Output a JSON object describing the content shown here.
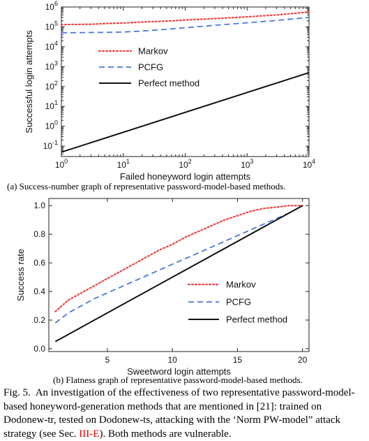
{
  "subcaptions": {
    "a": "(a) Success-number graph of representative password-model-based methods.",
    "b": "(b) Flatness graph of representative password-model-based methods."
  },
  "caption": {
    "label": "Fig. 5.",
    "text_before": "An investigation of the effectiveness of two representative password-model-based honeyword-generation methods that are mentioned in [21]: trained on Dodonew-tr, tested on Dodonew-ts, attacking with the ‘Norm PW-model” attack strategy (see Sec. ",
    "ref": "III-E",
    "text_after": "). Both methods are vulnerable."
  },
  "colors": {
    "markov": "#ee4444",
    "pcfg": "#4a78e0",
    "perfect": "#111111"
  },
  "chart_data": [
    {
      "type": "line",
      "xlabel": "Failed honeyword login attempts",
      "ylabel": "Successful login attempts",
      "xscale": "log",
      "yscale": "log",
      "xlim": [
        1,
        10000
      ],
      "ylim": [
        0.03,
        1000000
      ],
      "xticks": [
        1,
        10,
        100,
        1000,
        10000
      ],
      "xtick_labels": [
        "10^0",
        "10^1",
        "10^2",
        "10^3",
        "10^4"
      ],
      "yticks": [
        0.1,
        1,
        10,
        100,
        1000,
        10000,
        100000,
        1000000
      ],
      "ytick_labels": [
        "10^-1",
        "10^0",
        "10^1",
        "10^2",
        "10^3",
        "10^4",
        "10^5",
        "10^6"
      ],
      "legend_position": "center-left",
      "series": [
        {
          "name": "Markov",
          "style": "dotted",
          "x": [
            1,
            3,
            6,
            10,
            20,
            50,
            100,
            300,
            1000,
            3000,
            10000
          ],
          "y": [
            130000,
            135000,
            150000,
            155000,
            175000,
            195000,
            220000,
            260000,
            320000,
            400000,
            560000
          ]
        },
        {
          "name": "PCFG",
          "style": "dashed",
          "x": [
            1,
            3,
            6,
            10,
            20,
            50,
            100,
            300,
            1000,
            3000,
            10000
          ],
          "y": [
            50000,
            52000,
            53000,
            55000,
            62000,
            75000,
            90000,
            120000,
            160000,
            210000,
            300000
          ]
        },
        {
          "name": "Perfect method",
          "style": "solid",
          "x": [
            1,
            10000
          ],
          "y": [
            0.05,
            500
          ]
        }
      ]
    },
    {
      "type": "line",
      "xlabel": "Sweetword login attempts",
      "ylabel": "Success rate",
      "xlim": [
        0.5,
        20.5
      ],
      "ylim": [
        -0.02,
        1.05
      ],
      "xticks": [
        5,
        10,
        15,
        20
      ],
      "xtick_labels": [
        "5",
        "10",
        "15",
        "20"
      ],
      "yticks": [
        0.0,
        0.2,
        0.4,
        0.6,
        0.8,
        1.0
      ],
      "ytick_labels": [
        "0.0",
        "0.2",
        "0.4",
        "0.6",
        "0.8",
        "1.0"
      ],
      "legend_position": "lower-right",
      "series": [
        {
          "name": "Markov",
          "style": "dotted",
          "x": [
            1,
            2,
            3,
            4,
            5,
            6,
            7,
            8,
            9,
            10,
            11,
            12,
            13,
            14,
            15,
            16,
            17,
            18,
            19,
            20
          ],
          "y": [
            0.26,
            0.34,
            0.39,
            0.44,
            0.49,
            0.54,
            0.59,
            0.64,
            0.69,
            0.73,
            0.78,
            0.82,
            0.86,
            0.9,
            0.93,
            0.96,
            0.98,
            0.99,
            1.0,
            1.0
          ]
        },
        {
          "name": "PCFG",
          "style": "dashed",
          "x": [
            1,
            2,
            3,
            4,
            5,
            6,
            7,
            8,
            9,
            10,
            11,
            12,
            13,
            14,
            15,
            16,
            17,
            18,
            19,
            20
          ],
          "y": [
            0.18,
            0.25,
            0.3,
            0.35,
            0.39,
            0.43,
            0.47,
            0.51,
            0.55,
            0.59,
            0.63,
            0.67,
            0.71,
            0.75,
            0.79,
            0.83,
            0.87,
            0.91,
            0.95,
            1.0
          ]
        },
        {
          "name": "Perfect method",
          "style": "solid",
          "x": [
            1,
            20
          ],
          "y": [
            0.05,
            1.0
          ]
        }
      ]
    }
  ]
}
